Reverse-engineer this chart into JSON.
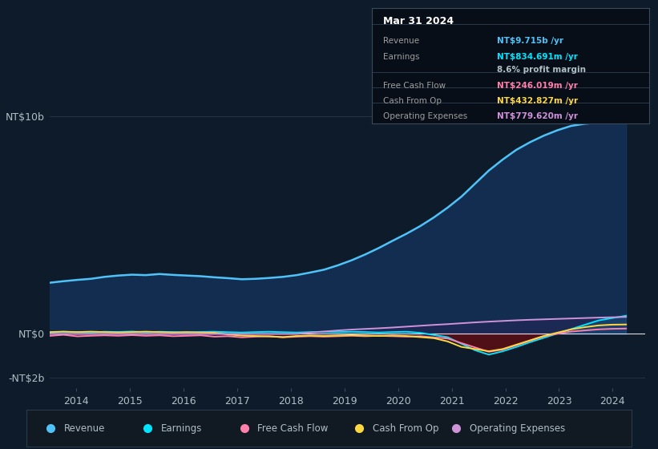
{
  "background_color": "#0d1b2a",
  "chart_bg": "#0d1b2a",
  "grid_color": "#2a3a4a",
  "title_box_date": "Mar 31 2024",
  "info_rows": [
    {
      "label": "Revenue",
      "value": "NT$9.715b /yr",
      "value_color": "#4fc3f7"
    },
    {
      "label": "Earnings",
      "value": "NT$834.691m /yr",
      "value_color": "#00e5ff"
    },
    {
      "label": "",
      "value": "8.6% profit margin",
      "value_color": "#b0bec5"
    },
    {
      "label": "Free Cash Flow",
      "value": "NT$246.019m /yr",
      "value_color": "#ff80ab"
    },
    {
      "label": "Cash From Op",
      "value": "NT$432.827m /yr",
      "value_color": "#ffd740"
    },
    {
      "label": "Operating Expenses",
      "value": "NT$779.620m /yr",
      "value_color": "#ce93d8"
    }
  ],
  "legend": [
    {
      "label": "Revenue",
      "color": "#4fc3f7"
    },
    {
      "label": "Earnings",
      "color": "#00e5ff"
    },
    {
      "label": "Free Cash Flow",
      "color": "#ff80ab"
    },
    {
      "label": "Cash From Op",
      "color": "#ffd740"
    },
    {
      "label": "Operating Expenses",
      "color": "#ce93d8"
    }
  ],
  "revenue_color": "#4fc3f7",
  "revenue_fill": "#1a4a8a",
  "earnings_color": "#00e5ff",
  "earnings_fill_neg": "#6b0000",
  "fcf_color": "#ff80ab",
  "cfo_color": "#ffd740",
  "opex_color": "#ce93d8",
  "opex_fill": "#4a1a6a",
  "zero_line_color": "#ffffff",
  "ytick_labels": [
    "-NT$2b",
    "NT$0",
    "NT$10b"
  ],
  "ytick_vals": [
    -2000,
    0,
    10000
  ],
  "xtick_labels": [
    "2014",
    "2015",
    "2016",
    "2017",
    "2018",
    "2019",
    "2020",
    "2021",
    "2022",
    "2023",
    "2024"
  ],
  "xtick_vals": [
    2014,
    2015,
    2016,
    2017,
    2018,
    2019,
    2020,
    2021,
    2022,
    2023,
    2024
  ],
  "ylim": [
    -2500,
    11000
  ],
  "xlim": [
    2013.5,
    2024.6
  ]
}
